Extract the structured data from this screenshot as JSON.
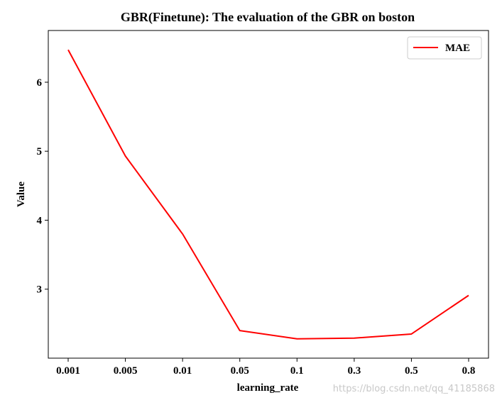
{
  "chart_data": {
    "type": "line",
    "title": "GBR(Finetune): The evaluation of the GBR on boston",
    "xlabel": "learning_rate",
    "ylabel": "Value",
    "categories": [
      "0.001",
      "0.005",
      "0.01",
      "0.05",
      "0.1",
      "0.3",
      "0.5",
      "0.8"
    ],
    "series": [
      {
        "name": "MAE",
        "color": "#ff0000",
        "values": [
          6.47,
          4.93,
          3.8,
          2.4,
          2.28,
          2.29,
          2.35,
          2.91
        ]
      }
    ],
    "yticks": [
      3,
      4,
      5,
      6
    ],
    "ylim": [
      2.0,
      6.75
    ],
    "grid": false,
    "legend_position": "top-right"
  },
  "watermark": "https://blog.csdn.net/qq_41185868"
}
